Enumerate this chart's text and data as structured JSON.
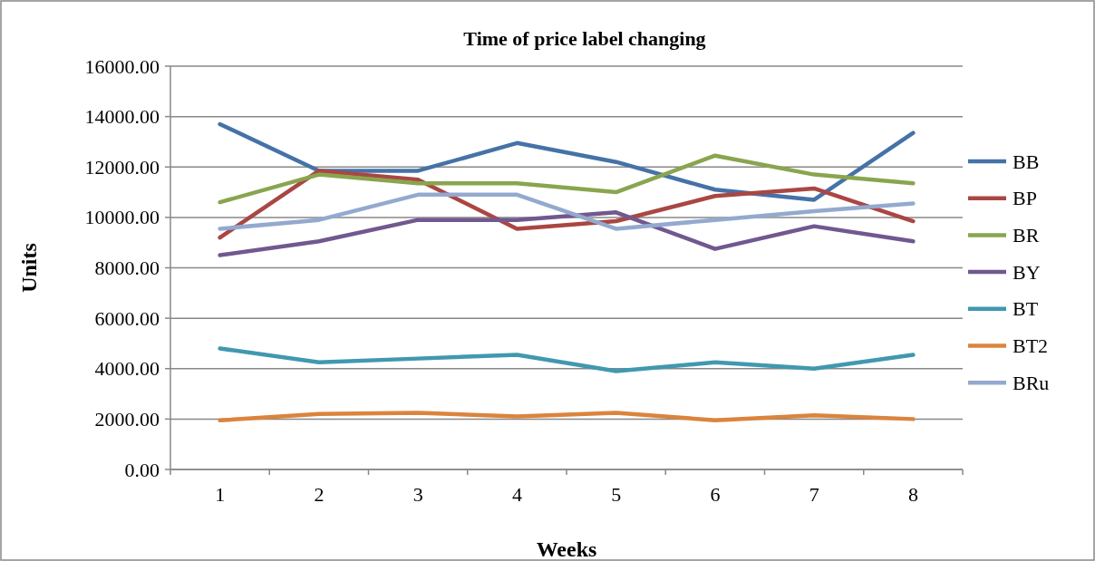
{
  "chart_data": {
    "type": "line",
    "title": "Time of price label changing",
    "xlabel": "Weeks",
    "ylabel": "Units",
    "categories": [
      "1",
      "2",
      "3",
      "4",
      "5",
      "6",
      "7",
      "8"
    ],
    "series": [
      {
        "name": "BB",
        "color": "#4572a7",
        "values": [
          13700,
          11850,
          11850,
          12950,
          12200,
          11100,
          10700,
          13350
        ]
      },
      {
        "name": "BP",
        "color": "#aa4643",
        "values": [
          9200,
          11850,
          11500,
          9550,
          9850,
          10850,
          11150,
          9850
        ]
      },
      {
        "name": "BR",
        "color": "#89a54e",
        "values": [
          10600,
          11700,
          11350,
          11350,
          11000,
          12450,
          11700,
          11350
        ]
      },
      {
        "name": "BY",
        "color": "#71588f",
        "values": [
          8500,
          9050,
          9900,
          9900,
          10200,
          8750,
          9650,
          9050
        ]
      },
      {
        "name": "BT",
        "color": "#4198af",
        "values": [
          4800,
          4250,
          4400,
          4550,
          3900,
          4250,
          4000,
          4550
        ]
      },
      {
        "name": "BT2",
        "color": "#db843d",
        "values": [
          1950,
          2200,
          2250,
          2100,
          2250,
          1950,
          2150,
          2000
        ]
      },
      {
        "name": "BRu",
        "color": "#93a9cf",
        "values": [
          9550,
          9900,
          10900,
          10900,
          9550,
          9900,
          10250,
          10550
        ]
      }
    ],
    "ylim": [
      0,
      16000
    ],
    "yticks": [
      {
        "value": 0,
        "label": "0.00"
      },
      {
        "value": 2000,
        "label": "2000.00"
      },
      {
        "value": 4000,
        "label": "4000.00"
      },
      {
        "value": 6000,
        "label": "6000.00"
      },
      {
        "value": 8000,
        "label": "8000.00"
      },
      {
        "value": 10000,
        "label": "10000.00"
      },
      {
        "value": 12000,
        "label": "12000.00"
      },
      {
        "value": 14000,
        "label": "14000.00"
      },
      {
        "value": 16000,
        "label": "16000.00"
      }
    ],
    "grid": "y",
    "legend": "right",
    "marker": "none",
    "line_style": "solid"
  }
}
